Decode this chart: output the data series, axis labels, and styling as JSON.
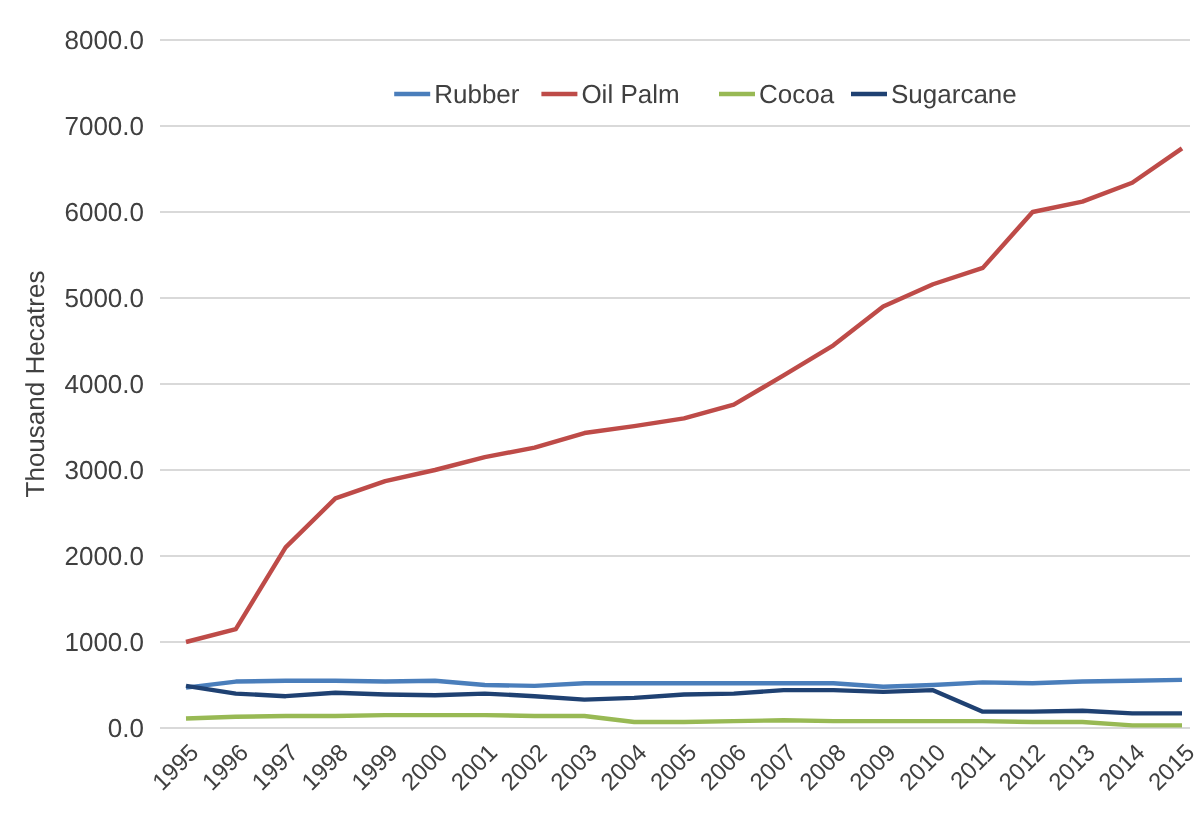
{
  "chart_data": {
    "type": "line",
    "ylabel": "Thousand Hecatres",
    "categories": [
      "1995",
      "1996",
      "1997",
      "1998",
      "1999",
      "2000",
      "2001",
      "2002",
      "2003",
      "2004",
      "2005",
      "2006",
      "2007",
      "2008",
      "2009",
      "2010",
      "2011",
      "2012",
      "2013",
      "2014",
      "2015"
    ],
    "series": [
      {
        "name": "Rubber",
        "color": "#4a7ebb",
        "values": [
          470,
          540,
          550,
          550,
          540,
          550,
          500,
          490,
          520,
          520,
          520,
          520,
          520,
          520,
          480,
          500,
          530,
          520,
          540,
          550,
          560
        ]
      },
      {
        "name": "Oil Palm",
        "color": "#be4b48",
        "values": [
          1000,
          1150,
          2100,
          2670,
          2870,
          3000,
          3150,
          3260,
          3430,
          3510,
          3600,
          3760,
          4100,
          4450,
          4900,
          5160,
          5350,
          6000,
          6120,
          6340,
          6740
        ]
      },
      {
        "name": "Cocoa",
        "color": "#98b954",
        "values": [
          110,
          130,
          140,
          140,
          150,
          150,
          150,
          140,
          140,
          70,
          70,
          80,
          90,
          80,
          80,
          80,
          80,
          70,
          70,
          30,
          30
        ]
      },
      {
        "name": "Sugarcane",
        "color": "#1f4172",
        "values": [
          490,
          400,
          370,
          410,
          390,
          380,
          400,
          370,
          330,
          350,
          390,
          400,
          440,
          440,
          420,
          440,
          190,
          190,
          200,
          170,
          170
        ]
      }
    ],
    "ylim": [
      0,
      8000
    ],
    "yticks": [
      {
        "value": 0,
        "label": "0.0"
      },
      {
        "value": 1000,
        "label": "1000.0"
      },
      {
        "value": 2000,
        "label": "2000.0"
      },
      {
        "value": 3000,
        "label": "3000.0"
      },
      {
        "value": 4000,
        "label": "4000.0"
      },
      {
        "value": 5000,
        "label": "5000.0"
      },
      {
        "value": 6000,
        "label": "6000.0"
      },
      {
        "value": 7000,
        "label": "7000.0"
      },
      {
        "value": 8000,
        "label": "8000.0"
      }
    ],
    "grid": "y",
    "legend": "top"
  }
}
